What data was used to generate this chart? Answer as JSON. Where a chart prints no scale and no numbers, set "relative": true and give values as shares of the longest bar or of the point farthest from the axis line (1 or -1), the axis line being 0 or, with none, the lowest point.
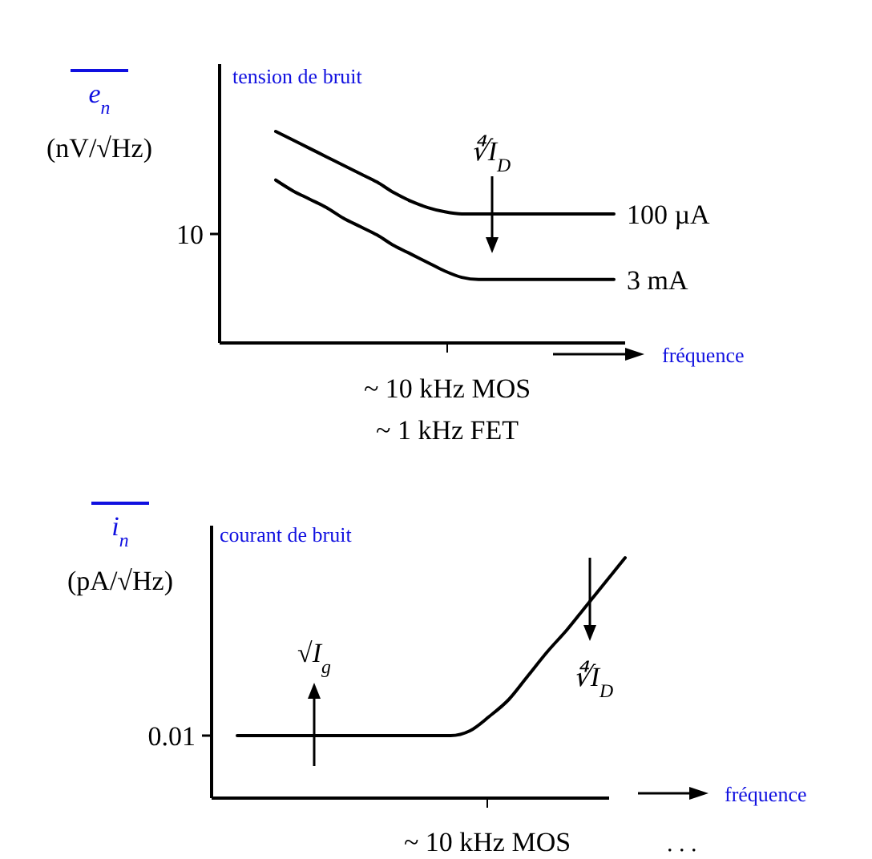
{
  "chart_data": [
    {
      "type": "line",
      "relative": true,
      "ylabel": "e$_{n}$ (nV/√Hz)",
      "xlabel": "fréquence",
      "categories": [
        null,
        null,
        null,
        null,
        null,
        null,
        null,
        null,
        null,
        null,
        null,
        null,
        null,
        null,
        null,
        null,
        null,
        null,
        null,
        null,
        null
      ],
      "series": [
        {
          "name": "100 µA",
          "color": "#000000",
          "values": [
            1,
            0.96,
            0.92,
            0.88,
            0.84,
            0.8,
            0.76,
            0.71,
            0.67,
            0.64,
            0.62,
            0.61,
            0.61,
            0.61,
            0.61,
            0.61,
            0.61,
            0.61,
            0.61,
            0.61,
            0.61
          ]
        },
        {
          "name": "3 mA",
          "color": "#000000",
          "values": [
            0.77,
            0.72,
            0.68,
            0.64,
            0.59,
            0.55,
            0.51,
            0.46,
            0.42,
            0.38,
            0.34,
            0.31,
            0.3,
            0.3,
            0.3,
            0.3,
            0.3,
            0.3,
            0.3,
            0.3,
            0.3
          ]
        }
      ],
      "annotations": [
        "tension de bruit",
        "10",
        "∜I$_{D}$",
        "~ 10 kHz MOS",
        "~ 1 kHz FET"
      ]
    },
    {
      "type": "line",
      "relative": true,
      "ylabel": "i$_{n}$ (pA/√Hz)",
      "xlabel": "fréquence",
      "categories": [
        null,
        null,
        null,
        null,
        null,
        null,
        null,
        null,
        null,
        null,
        null,
        null,
        null,
        null,
        null,
        null,
        null,
        null,
        null,
        null,
        null
      ],
      "series": [
        {
          "color": "#000000",
          "values": [
            0.26,
            0.26,
            0.26,
            0.26,
            0.26,
            0.26,
            0.26,
            0.26,
            0.26,
            0.26,
            0.26,
            0.26,
            0.28,
            0.34,
            0.41,
            0.51,
            0.61,
            0.7,
            0.8,
            0.9,
            1
          ]
        }
      ],
      "annotations": [
        "courant de bruit",
        "0.01",
        "√I$_{g}$",
        "∜I$_{D}$",
        ". . .",
        "~ 10 kHz MOS"
      ]
    }
  ]
}
